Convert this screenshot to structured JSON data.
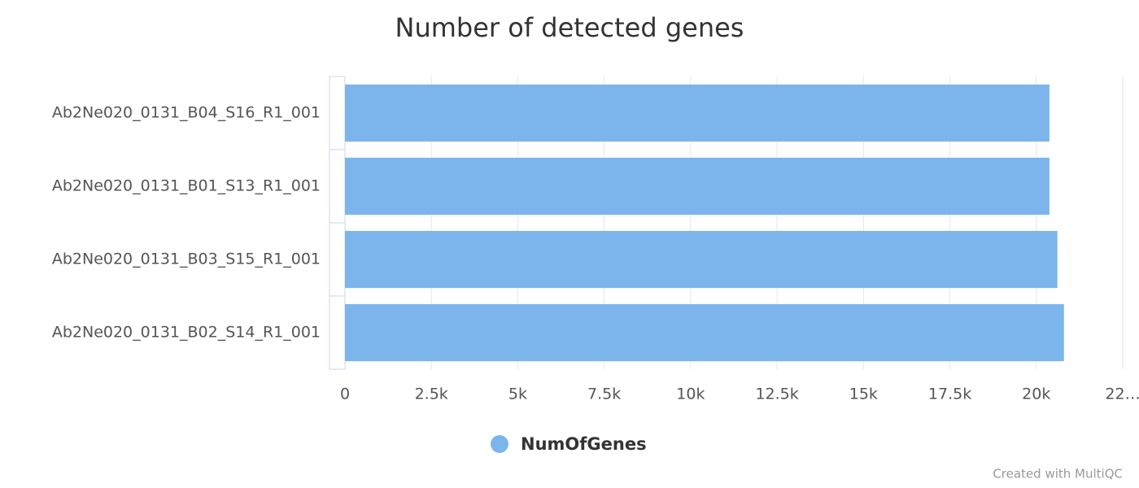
{
  "chart_data": {
    "type": "hbar",
    "title": "Number of detected genes",
    "categories": [
      "Ab2Ne020_0131_B04_S16_R1_001",
      "Ab2Ne020_0131_B01_S13_R1_001",
      "Ab2Ne020_0131_B03_S15_R1_001",
      "Ab2Ne020_0131_B02_S14_R1_001"
    ],
    "series": [
      {
        "name": "NumOfGenes",
        "color": "#7cb5ec",
        "values": [
          20380,
          20380,
          20610,
          20800
        ]
      }
    ],
    "xlim": [
      0,
      22500
    ],
    "xticks": [
      0,
      {
        "value": 2500,
        "label": "2.5k"
      },
      {
        "value": 5000,
        "label": "5k"
      },
      {
        "value": 7500,
        "label": "7.5k"
      },
      {
        "value": 10000,
        "label": "10k"
      },
      {
        "value": 12500,
        "label": "12.5k"
      },
      {
        "value": 15000,
        "label": "15k"
      },
      {
        "value": 17500,
        "label": "17.5k"
      },
      {
        "value": 20000,
        "label": "20k"
      },
      {
        "value": 22500,
        "label": "22…"
      }
    ],
    "grid": true,
    "credit": "Created with MultiQC"
  }
}
